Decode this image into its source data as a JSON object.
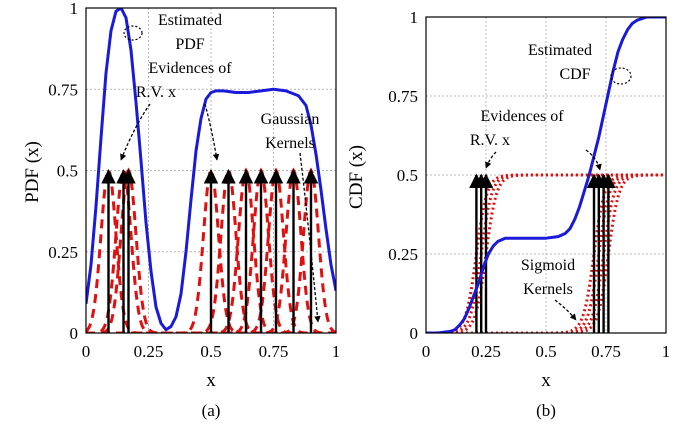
{
  "colors": {
    "estimate": "#1a1adb",
    "kernel": "#e01010",
    "evidence": "#000000",
    "grid": "#b8b8b8",
    "axis": "#000000"
  },
  "chart_data": [
    {
      "type": "line",
      "caption": "(a)",
      "xlabel": "x",
      "ylabel": "PDF (x)",
      "xlim": [
        0,
        1
      ],
      "ylim": [
        0,
        1
      ],
      "xticks": [
        0,
        0.25,
        0.5,
        0.75,
        1
      ],
      "xtick_labels": [
        "0",
        "0.25",
        "0.5",
        "0.75",
        "1"
      ],
      "yticks": [
        0,
        0.25,
        0.5,
        0.75,
        1
      ],
      "ytick_labels": [
        "0",
        "0.25",
        "0.5",
        "0.75",
        "1"
      ],
      "grid": true,
      "evidence_x": [
        0.09,
        0.15,
        0.17,
        0.5,
        0.57,
        0.64,
        0.7,
        0.76,
        0.83,
        0.9
      ],
      "evidence_height": 0.5,
      "kernel_sigma": 0.03,
      "series": [
        {
          "style": "solid",
          "role": "estimate",
          "x": [
            0,
            0.02,
            0.04,
            0.06,
            0.08,
            0.1,
            0.12,
            0.14,
            0.16,
            0.18,
            0.2,
            0.22,
            0.24,
            0.26,
            0.28,
            0.3,
            0.32,
            0.34,
            0.36,
            0.38,
            0.4,
            0.42,
            0.44,
            0.46,
            0.48,
            0.5,
            0.52,
            0.55,
            0.6,
            0.65,
            0.7,
            0.75,
            0.8,
            0.85,
            0.88,
            0.9,
            0.92,
            0.94,
            0.96,
            0.98,
            1
          ],
          "y": [
            0.09,
            0.21,
            0.39,
            0.6,
            0.8,
            0.93,
            0.99,
            1.0,
            0.97,
            0.87,
            0.71,
            0.53,
            0.34,
            0.19,
            0.08,
            0.03,
            0.01,
            0.02,
            0.05,
            0.12,
            0.25,
            0.41,
            0.56,
            0.66,
            0.72,
            0.74,
            0.745,
            0.745,
            0.74,
            0.74,
            0.745,
            0.75,
            0.745,
            0.73,
            0.7,
            0.64,
            0.55,
            0.44,
            0.32,
            0.21,
            0.13
          ]
        },
        {
          "style": "dashed",
          "role": "kernels",
          "x_centers": [
            0.09,
            0.15,
            0.17,
            0.5,
            0.57,
            0.64,
            0.7,
            0.76,
            0.83,
            0.9
          ],
          "peak": 0.5
        }
      ],
      "annotations": [
        {
          "lines": [
            "Estimated",
            "PDF"
          ]
        },
        {
          "lines": [
            "Evidences of",
            "R.V. x"
          ]
        },
        {
          "lines": [
            "Gaussian",
            "Kernels"
          ]
        }
      ]
    },
    {
      "type": "line",
      "caption": "(b)",
      "xlabel": "x",
      "ylabel": "CDF (x)",
      "xlim": [
        0,
        1
      ],
      "ylim": [
        0,
        1
      ],
      "xticks": [
        0,
        0.25,
        0.5,
        0.75,
        1
      ],
      "xtick_labels": [
        "0",
        "0.25",
        "0.5",
        "0.75",
        "1"
      ],
      "yticks": [
        0,
        0.25,
        0.5,
        0.75,
        1
      ],
      "ytick_labels": [
        "0",
        "0.25",
        "0.5",
        "0.75",
        "1"
      ],
      "grid": true,
      "evidence_x": [
        0.21,
        0.23,
        0.25,
        0.7,
        0.72,
        0.74,
        0.76
      ],
      "evidence_height": 0.5,
      "series": [
        {
          "style": "solid",
          "role": "estimate",
          "x": [
            0,
            0.05,
            0.1,
            0.12,
            0.14,
            0.16,
            0.18,
            0.2,
            0.22,
            0.24,
            0.26,
            0.28,
            0.3,
            0.33,
            0.36,
            0.4,
            0.45,
            0.5,
            0.55,
            0.58,
            0.6,
            0.62,
            0.64,
            0.66,
            0.68,
            0.7,
            0.72,
            0.74,
            0.76,
            0.78,
            0.8,
            0.82,
            0.84,
            0.86,
            0.88,
            0.9,
            0.92,
            0.95,
            1
          ],
          "y": [
            0,
            0,
            0.005,
            0.01,
            0.025,
            0.045,
            0.08,
            0.12,
            0.16,
            0.21,
            0.25,
            0.275,
            0.29,
            0.3,
            0.3,
            0.3,
            0.3,
            0.3,
            0.305,
            0.315,
            0.33,
            0.36,
            0.4,
            0.45,
            0.5,
            0.56,
            0.62,
            0.69,
            0.76,
            0.83,
            0.89,
            0.93,
            0.96,
            0.98,
            0.99,
            0.995,
            1,
            1,
            1
          ]
        },
        {
          "style": "dotted",
          "role": "kernels",
          "x_centers": [
            0.21,
            0.23,
            0.25,
            0.7,
            0.72,
            0.74,
            0.76
          ],
          "plateau": 0.5
        }
      ],
      "annotations": [
        {
          "lines": [
            "Estimated",
            "CDF"
          ]
        },
        {
          "lines": [
            "Evidences of",
            "R.V. x"
          ]
        },
        {
          "lines": [
            "Sigmoid",
            "Kernels"
          ]
        }
      ]
    }
  ]
}
